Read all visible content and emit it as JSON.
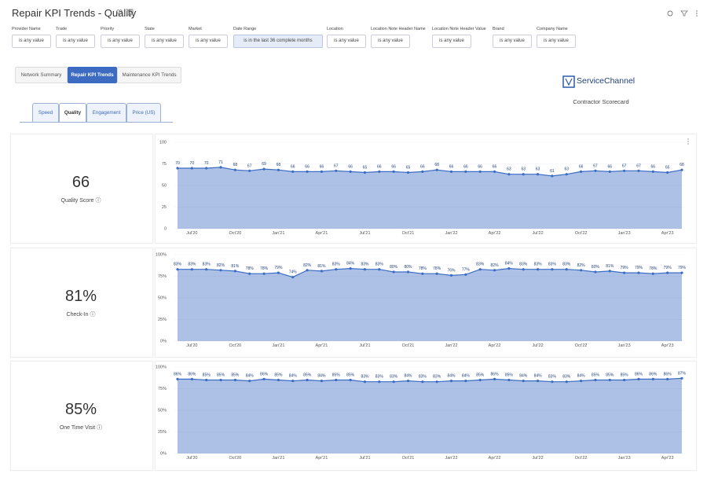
{
  "header": {
    "title": "Repair KPI Trends - Quality"
  },
  "filters": [
    {
      "label": "Provider Name",
      "value": "is any value"
    },
    {
      "label": "Trade",
      "value": "is any value"
    },
    {
      "label": "Priority",
      "value": "is any value"
    },
    {
      "label": "State",
      "value": "is any value"
    },
    {
      "label": "Market",
      "value": "is any value"
    },
    {
      "label": "Date Range",
      "value": "is in the last 36 complete months"
    },
    {
      "label": "Location",
      "value": "is any value"
    },
    {
      "label": "Location Note Header Name",
      "value": "is any value"
    },
    {
      "label": "Location Note Header Value",
      "value": "is any value"
    },
    {
      "label": "Brand",
      "value": "is any value"
    },
    {
      "label": "Company Name",
      "value": "is any value"
    }
  ],
  "tabs": [
    "Network Summary",
    "Repair KPI Trends",
    "Maintenance KPI Trends"
  ],
  "brand": {
    "name": "ServiceChannel",
    "subtitle": "Contractor Scorecard"
  },
  "subtabs": [
    "Speed",
    "Quality",
    "Engagement",
    "Price (US)"
  ],
  "kpis": [
    {
      "value": "66",
      "label": "Quality Score"
    },
    {
      "value": "81%",
      "label": "Check-In"
    },
    {
      "value": "85%",
      "label": "One Time Visit"
    }
  ],
  "chart_data": [
    {
      "type": "area",
      "color": "#3b6cc4",
      "grid": true,
      "categories": [
        null,
        "Jul'20",
        null,
        null,
        "Oct'20",
        null,
        null,
        "Jan'21",
        null,
        null,
        "Apr'21",
        null,
        null,
        "Jul'21",
        null,
        null,
        "Oct'21",
        null,
        null,
        "Jan'22",
        null,
        null,
        "Apr'22",
        null,
        null,
        "Jul'22",
        null,
        null,
        "Oct'22",
        null,
        null,
        "Jan'23",
        null,
        null,
        "Apr'23",
        null
      ],
      "values": [
        70,
        70,
        70,
        71,
        68,
        67,
        69,
        68,
        66,
        66,
        66,
        67,
        66,
        65,
        66,
        66,
        65,
        66,
        68,
        66,
        66,
        66,
        66,
        63,
        63,
        63,
        61,
        63,
        66,
        67,
        66,
        67,
        67,
        66,
        65,
        68
      ],
      "ylim": [
        0,
        100
      ],
      "yticks": [
        0,
        25,
        50,
        75,
        100
      ]
    },
    {
      "type": "area",
      "color": "#3b6cc4",
      "grid": true,
      "categories": [
        null,
        "Jul'20",
        null,
        null,
        "Oct'20",
        null,
        null,
        "Jan'21",
        null,
        null,
        "Apr'21",
        null,
        null,
        "Jul'21",
        null,
        null,
        "Oct'21",
        null,
        null,
        "Jan'22",
        null,
        null,
        "Apr'22",
        null,
        null,
        "Jul'22",
        null,
        null,
        "Oct'22",
        null,
        null,
        "Jan'23",
        null,
        null,
        "Apr'23",
        null
      ],
      "values": [
        83,
        83,
        83,
        82,
        81,
        78,
        78,
        79,
        74,
        82,
        81,
        83,
        84,
        83,
        83,
        80,
        80,
        78,
        78,
        76,
        77,
        83,
        82,
        84,
        83,
        83,
        83,
        83,
        82,
        80,
        81,
        79,
        79,
        78,
        79,
        79
      ],
      "value_labels": [
        "83%",
        "83%",
        "83%",
        "82%",
        "81%",
        "78%",
        "78%",
        "79%",
        "74%",
        "82%",
        "81%",
        "83%",
        "84%",
        "83%",
        "83%",
        "80%",
        "80%",
        "78%",
        "78%",
        "76%",
        "77%",
        "83%",
        "82%",
        "84%",
        "83%",
        "83%",
        "83%",
        "83%",
        "82%",
        "80%",
        "81%",
        "79%",
        "79%",
        "78%",
        "79%",
        "79%"
      ],
      "ylim": [
        0,
        100
      ],
      "yticks": [
        {
          "value": 0,
          "label": "0%"
        },
        {
          "value": 25,
          "label": "25%"
        },
        {
          "value": 50,
          "label": "50%"
        },
        {
          "value": 75,
          "label": "75%"
        },
        {
          "value": 100,
          "label": "100%"
        }
      ]
    },
    {
      "type": "area",
      "color": "#3b6cc4",
      "grid": true,
      "categories": [
        null,
        "Jul'20",
        null,
        null,
        "Oct'20",
        null,
        null,
        "Jan'21",
        null,
        null,
        "Apr'21",
        null,
        null,
        "Jul'21",
        null,
        null,
        "Oct'21",
        null,
        null,
        "Jan'22",
        null,
        null,
        "Apr'22",
        null,
        null,
        "Jul'22",
        null,
        null,
        "Oct'22",
        null,
        null,
        "Jan'23",
        null,
        null,
        "Apr'23",
        null
      ],
      "values": [
        86,
        86,
        85,
        85,
        85,
        84,
        86,
        85,
        84,
        85,
        84,
        85,
        85,
        83,
        83,
        83,
        84,
        83,
        83,
        84,
        84,
        85,
        86,
        85,
        84,
        84,
        83,
        83,
        84,
        85,
        85,
        85,
        86,
        86,
        86,
        87
      ],
      "value_labels": [
        "86%",
        "86%",
        "85%",
        "85%",
        "85%",
        "84%",
        "86%",
        "85%",
        "84%",
        "85%",
        "84%",
        "85%",
        "85%",
        "83%",
        "83%",
        "83%",
        "84%",
        "83%",
        "83%",
        "84%",
        "84%",
        "85%",
        "86%",
        "85%",
        "84%",
        "84%",
        "83%",
        "83%",
        "84%",
        "85%",
        "85%",
        "85%",
        "86%",
        "86%",
        "86%",
        "87%"
      ],
      "ylim": [
        0,
        100
      ],
      "yticks": [
        {
          "value": 0,
          "label": "0%"
        },
        {
          "value": 25,
          "label": "25%"
        },
        {
          "value": 50,
          "label": "50%"
        },
        {
          "value": 75,
          "label": "75%"
        },
        {
          "value": 100,
          "label": "100%"
        }
      ]
    }
  ]
}
